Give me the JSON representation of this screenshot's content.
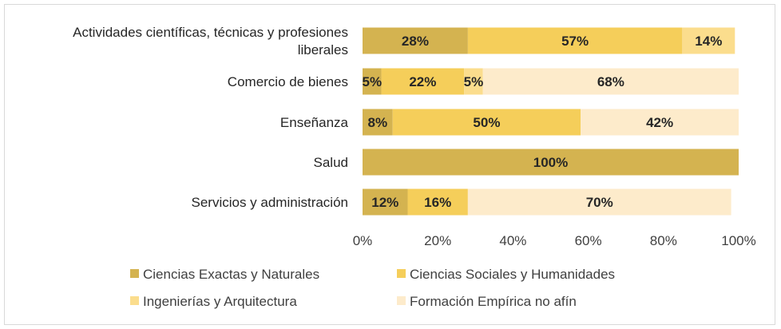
{
  "chart_data": {
    "type": "bar",
    "orientation": "horizontal",
    "stacked": "percent",
    "categories": [
      "Actividades científicas, técnicas y profesiones liberales",
      "Comercio de bienes",
      "Enseñanza",
      "Salud",
      "Servicios y administración"
    ],
    "category_lines": [
      [
        "Actividades científicas, técnicas y profesiones",
        "liberales"
      ],
      [
        "Comercio de bienes"
      ],
      [
        "Enseñanza"
      ],
      [
        "Salud"
      ],
      [
        "Servicios y administración"
      ]
    ],
    "series": [
      {
        "name": "Ciencias Exactas y Naturales",
        "color": "#D4B350",
        "values": [
          28,
          5,
          8,
          100,
          12
        ],
        "labels": [
          "28%",
          "5%",
          "8%",
          "100%",
          "12%"
        ]
      },
      {
        "name": "Ciencias Sociales y Humanidades",
        "color": "#F5CE5A",
        "values": [
          57,
          22,
          50,
          0,
          16
        ],
        "labels": [
          "57%",
          "22%",
          "50%",
          "",
          "16%"
        ]
      },
      {
        "name": "Ingenierías y Arquitectura",
        "color": "#FBDD8D",
        "values": [
          14,
          5,
          0,
          0,
          0
        ],
        "labels": [
          "14%",
          "5%",
          "",
          "",
          ""
        ]
      },
      {
        "name": "Formación Empírica no afín",
        "color": "#FDEBCB",
        "values": [
          0,
          68,
          42,
          0,
          70
        ],
        "labels": [
          "",
          "68%",
          "42%",
          "",
          "70%"
        ]
      }
    ],
    "x_ticks": [
      "0%",
      "20%",
      "40%",
      "60%",
      "80%",
      "100%"
    ],
    "xlim": [
      0,
      100
    ],
    "grid": false,
    "legend_position": "bottom"
  }
}
